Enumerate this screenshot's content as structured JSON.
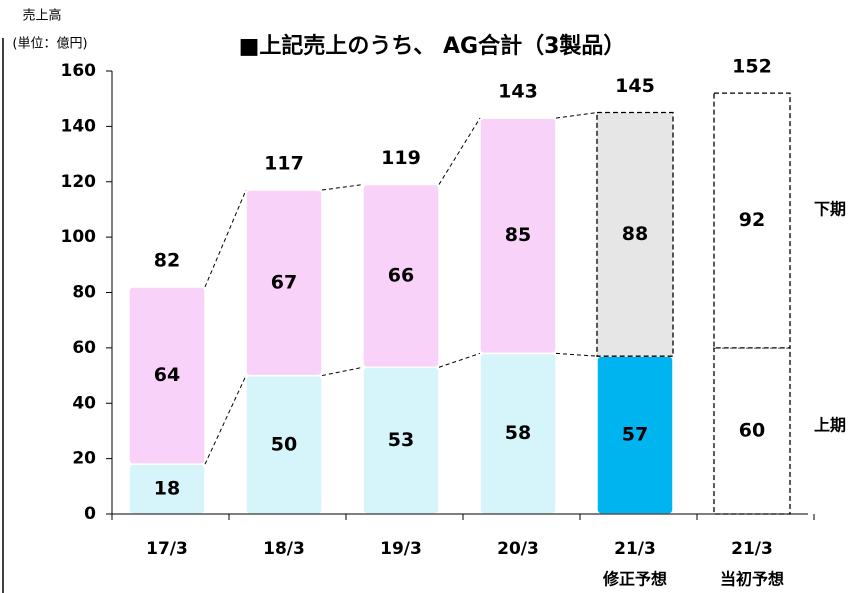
{
  "chart_data": {
    "type": "stacked_bar",
    "title": "■上記売上のうち、 AG合計（3製品）",
    "y_label": "売上高",
    "y_unit": "(単位：億円)",
    "categories": [
      "17/3",
      "18/3",
      "19/3",
      "20/3",
      "21/3",
      "21/3"
    ],
    "category_notes": [
      null,
      null,
      null,
      null,
      "修正予想",
      "当初予想"
    ],
    "series": [
      {
        "name": "上期",
        "values": [
          18,
          50,
          53,
          58,
          57,
          60
        ],
        "colors": [
          "#d6f5fb",
          "#d6f5fb",
          "#d6f5fb",
          "#d6f5fb",
          "#00b4f0",
          "#ffffff"
        ],
        "outline": [
          "none",
          "none",
          "none",
          "none",
          "none",
          "dashed"
        ]
      },
      {
        "name": "下期",
        "values": [
          64,
          67,
          66,
          85,
          88,
          92
        ],
        "colors": [
          "#f9d2f9",
          "#f9d2f9",
          "#f9d2f9",
          "#f9d2f9",
          "#e6e6e6",
          "#ffffff"
        ],
        "outline": [
          "none",
          "none",
          "none",
          "none",
          "dashed",
          "dashed"
        ]
      }
    ],
    "totals": [
      82,
      117,
      119,
      143,
      145,
      152
    ],
    "ylim": [
      0,
      160
    ],
    "yticks": [
      0,
      20,
      40,
      60,
      80,
      100,
      120,
      140,
      160
    ]
  }
}
